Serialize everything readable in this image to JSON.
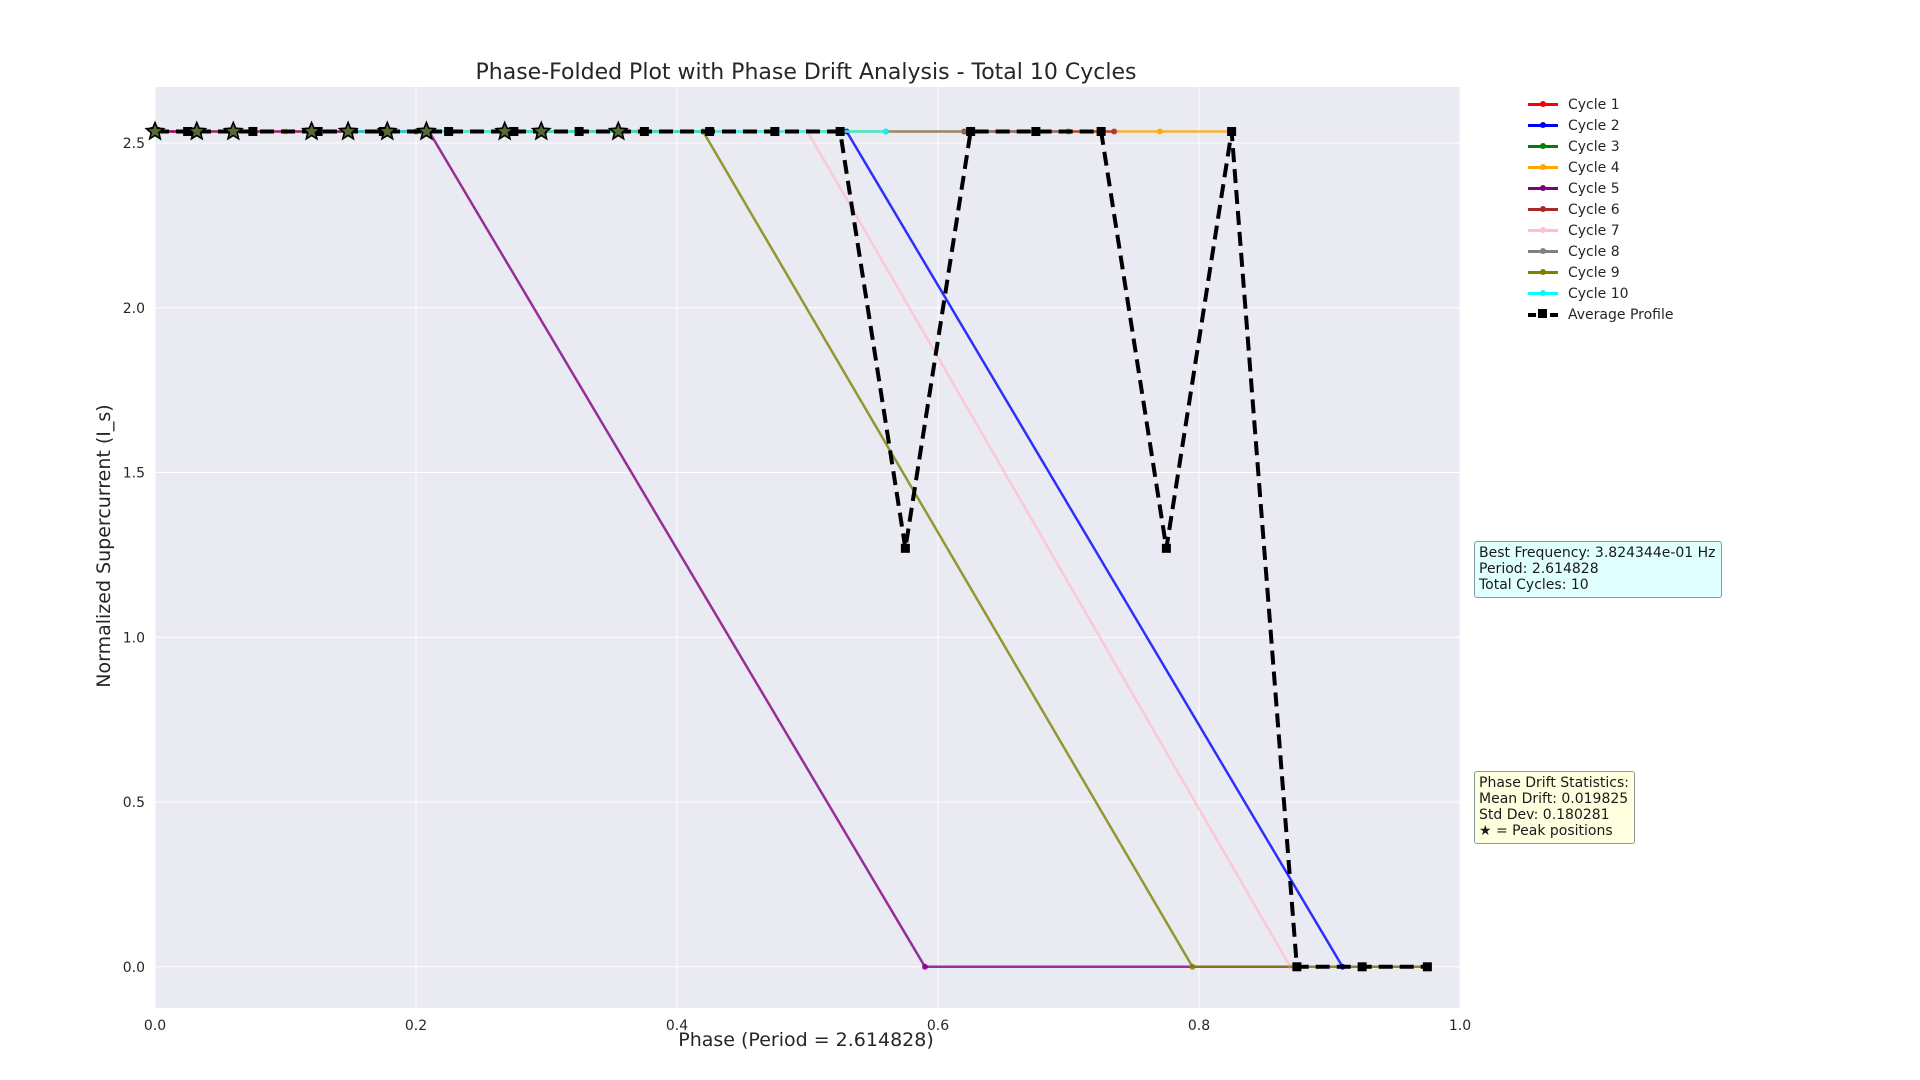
{
  "chart_data": {
    "type": "line",
    "title": "Phase-Folded Plot with Phase Drift Analysis - Total 10 Cycles",
    "xlabel": "Phase (Period = 2.614828)",
    "ylabel": "Normalized Supercurrent (I_s)",
    "xlim": [
      0.0,
      1.0
    ],
    "ylim": [
      -0.125,
      2.67
    ],
    "xticks": [
      0.0,
      0.2,
      0.4,
      0.6,
      0.8,
      1.0
    ],
    "xtick_labels": [
      "0.0",
      "0.2",
      "0.4",
      "0.6",
      "0.8",
      "1.0"
    ],
    "yticks": [
      0.0,
      0.5,
      1.0,
      1.5,
      2.0,
      2.5
    ],
    "ytick_labels": [
      "0.0",
      "0.5",
      "1.0",
      "1.5",
      "2.0",
      "2.5"
    ],
    "grid": true,
    "legend": "outside-right-top",
    "series": [
      {
        "name": "Cycle 1",
        "color": "#ff0000",
        "x": [
          0.0,
          0.03
        ],
        "y": [
          2.535,
          2.535
        ]
      },
      {
        "name": "Cycle 2",
        "color": "#0000ff",
        "x": [
          0.53,
          0.91,
          0.975
        ],
        "y": [
          2.535,
          0.0,
          0.0
        ]
      },
      {
        "name": "Cycle 3",
        "color": "#008000",
        "x": [
          0.12,
          0.2
        ],
        "y": [
          2.535,
          2.535
        ]
      },
      {
        "name": "Cycle 4",
        "color": "#ffa500",
        "x": [
          0.03,
          0.1,
          0.77,
          0.825
        ],
        "y": [
          2.535,
          2.535,
          2.535,
          2.535
        ]
      },
      {
        "name": "Cycle 5",
        "color": "#800080",
        "x": [
          0.0,
          0.21,
          0.59,
          0.975
        ],
        "y": [
          2.535,
          2.535,
          0.0,
          0.0
        ]
      },
      {
        "name": "Cycle 6",
        "color": "#a52a2a",
        "x": [
          0.62,
          0.735
        ],
        "y": [
          2.535,
          2.535
        ]
      },
      {
        "name": "Cycle 7",
        "color": "#ffc0cb",
        "x": [
          0.37,
          0.5,
          0.87,
          0.975
        ],
        "y": [
          2.535,
          2.535,
          0.0,
          0.0
        ]
      },
      {
        "name": "Cycle 8",
        "color": "#808080",
        "x": [
          0.56,
          0.7
        ],
        "y": [
          2.535,
          2.535
        ]
      },
      {
        "name": "Cycle 9",
        "color": "#808000",
        "x": [
          0.27,
          0.42,
          0.795,
          0.975
        ],
        "y": [
          2.535,
          2.535,
          0.0,
          0.0
        ]
      },
      {
        "name": "Cycle 10",
        "color": "#00ffff",
        "x": [
          0.15,
          0.56
        ],
        "y": [
          2.535,
          2.535
        ]
      },
      {
        "name": "Average Profile",
        "color": "#000000",
        "dashed": true,
        "x": [
          0.0,
          0.025,
          0.075,
          0.125,
          0.175,
          0.225,
          0.275,
          0.325,
          0.375,
          0.425,
          0.475,
          0.525,
          0.575,
          0.625,
          0.675,
          0.725,
          0.775,
          0.825,
          0.875,
          0.925,
          0.975
        ],
        "y": [
          2.535,
          2.535,
          2.535,
          2.535,
          2.535,
          2.535,
          2.535,
          2.535,
          2.535,
          2.535,
          2.535,
          2.535,
          1.27,
          2.535,
          2.535,
          2.535,
          1.27,
          2.535,
          0.0,
          0.0,
          0.0
        ]
      }
    ],
    "peak_markers": {
      "x": [
        0.0,
        0.032,
        0.06,
        0.12,
        0.148,
        0.178,
        0.208,
        0.268,
        0.296,
        0.355
      ],
      "y": 2.535
    }
  },
  "info_box": {
    "text": "Best Frequency: 3.824344e-01 Hz\nPeriod: 2.614828\nTotal Cycles: 10",
    "bg": "#e0ffff"
  },
  "drift_box": {
    "text": "Phase Drift Statistics:\nMean Drift: 0.019825\nStd Dev: 0.180281\n★ = Peak positions",
    "bg": "#ffffe0"
  }
}
